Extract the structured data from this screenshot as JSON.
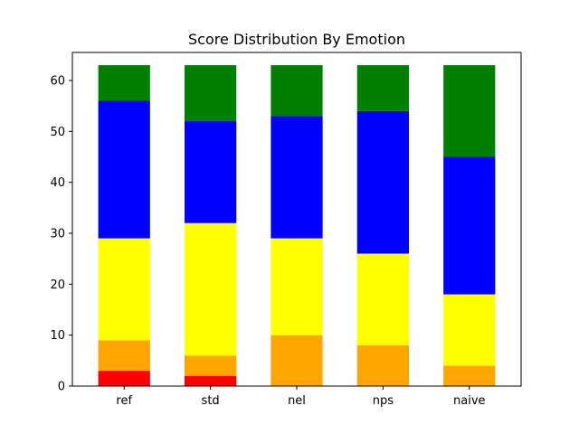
{
  "chart_data": {
    "type": "bar",
    "stacked": true,
    "title": "Score Distribution By Emotion",
    "xlabel": "",
    "ylabel": "",
    "categories": [
      "ref",
      "std",
      "nel",
      "nps",
      "naive"
    ],
    "ylim": [
      0,
      65.5
    ],
    "yticks": [
      0,
      10,
      20,
      30,
      40,
      50,
      60
    ],
    "grid": false,
    "legend": "none",
    "series": [
      {
        "color": "#ff0000",
        "values": [
          3,
          2,
          0,
          0,
          0
        ]
      },
      {
        "color": "#ffa500",
        "values": [
          6,
          4,
          10,
          8,
          4
        ]
      },
      {
        "color": "#ffff00",
        "values": [
          20,
          26,
          19,
          18,
          14
        ]
      },
      {
        "color": "#0000ff",
        "values": [
          27,
          20,
          24,
          28,
          27
        ]
      },
      {
        "color": "#008000",
        "values": [
          7,
          11,
          10,
          9,
          18
        ]
      }
    ]
  }
}
